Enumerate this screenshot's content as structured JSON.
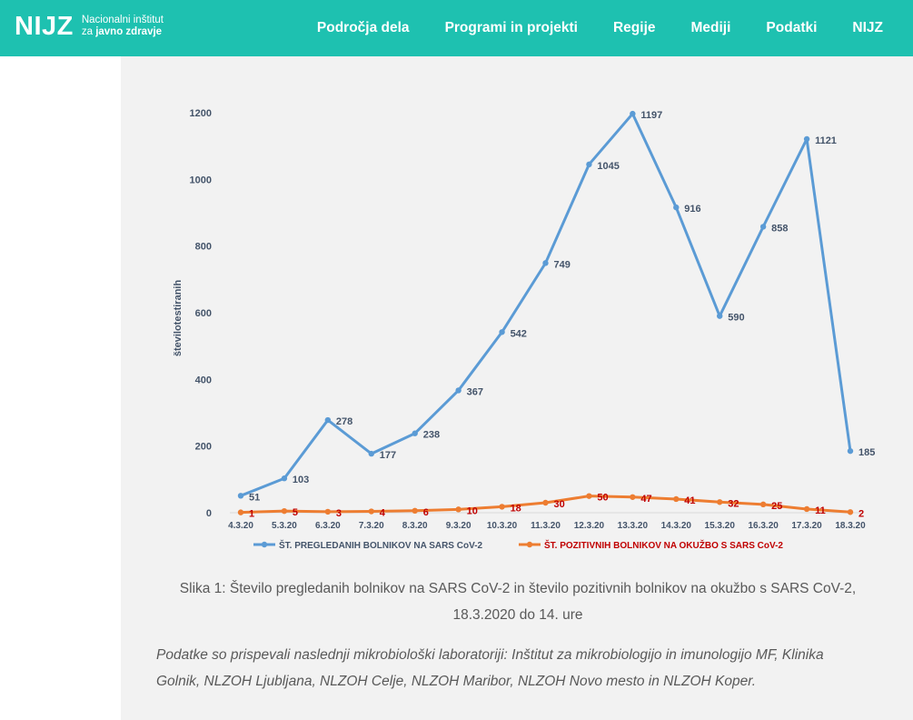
{
  "header": {
    "logo_mark": "NIJZ",
    "logo_line1": "Nacionalni inštitut",
    "logo_line2_prefix": "za ",
    "logo_line2_bold": "javno zdravje",
    "nav": [
      "Področja dela",
      "Programi in projekti",
      "Regije",
      "Mediji",
      "Podatki",
      "NIJZ"
    ]
  },
  "figure": {
    "caption_line1": "Slika 1: Število pregledanih bolnikov na SARS CoV-2 in število pozitivnih bolnikov na okužbo s SARS CoV-2,",
    "caption_line2": "18.3.2020 do 14. ure",
    "note_line1": "Podatke so prispevali naslednji mikrobiološki laboratoriji: Inštitut za mikrobiologijo in imunologijo MF, Klinika",
    "note_line2": "Golnik, NLZOH Ljubljana, NLZOH Celje, NLZOH Maribor, NLZOH Novo mesto in NLZOH Koper."
  },
  "colors": {
    "header_bg": "#1ec1b0",
    "series_tested": "#5b9bd5",
    "series_positive": "#ed7d31",
    "label_tested": "#44546a",
    "label_positive": "#c00000"
  },
  "chart_data": {
    "type": "line",
    "title": "",
    "xlabel": "",
    "ylabel": "številotestiranih",
    "ylim": [
      0,
      1200
    ],
    "yticks": [
      0,
      200,
      400,
      600,
      800,
      1000,
      1200
    ],
    "grid": false,
    "legend_position": "bottom",
    "categories": [
      "4.3.20",
      "5.3.20",
      "6.3.20",
      "7.3.20",
      "8.3.20",
      "9.3.20",
      "10.3.20",
      "11.3.20",
      "12.3.20",
      "13.3.20",
      "14.3.20",
      "15.3.20",
      "16.3.20",
      "17.3.20",
      "18.3.20"
    ],
    "series": [
      {
        "name": "ŠT. PREGLEDANIH BOLNIKOV NA SARS CoV-2",
        "values": [
          51,
          103,
          278,
          177,
          238,
          367,
          542,
          749,
          1045,
          1197,
          916,
          590,
          858,
          1121,
          185
        ]
      },
      {
        "name": "ŠT. POZITIVNIH BOLNIKOV NA OKUŽBO S SARS CoV-2",
        "values": [
          1,
          5,
          3,
          4,
          6,
          10,
          18,
          30,
          50,
          47,
          41,
          32,
          25,
          11,
          2
        ]
      }
    ]
  }
}
